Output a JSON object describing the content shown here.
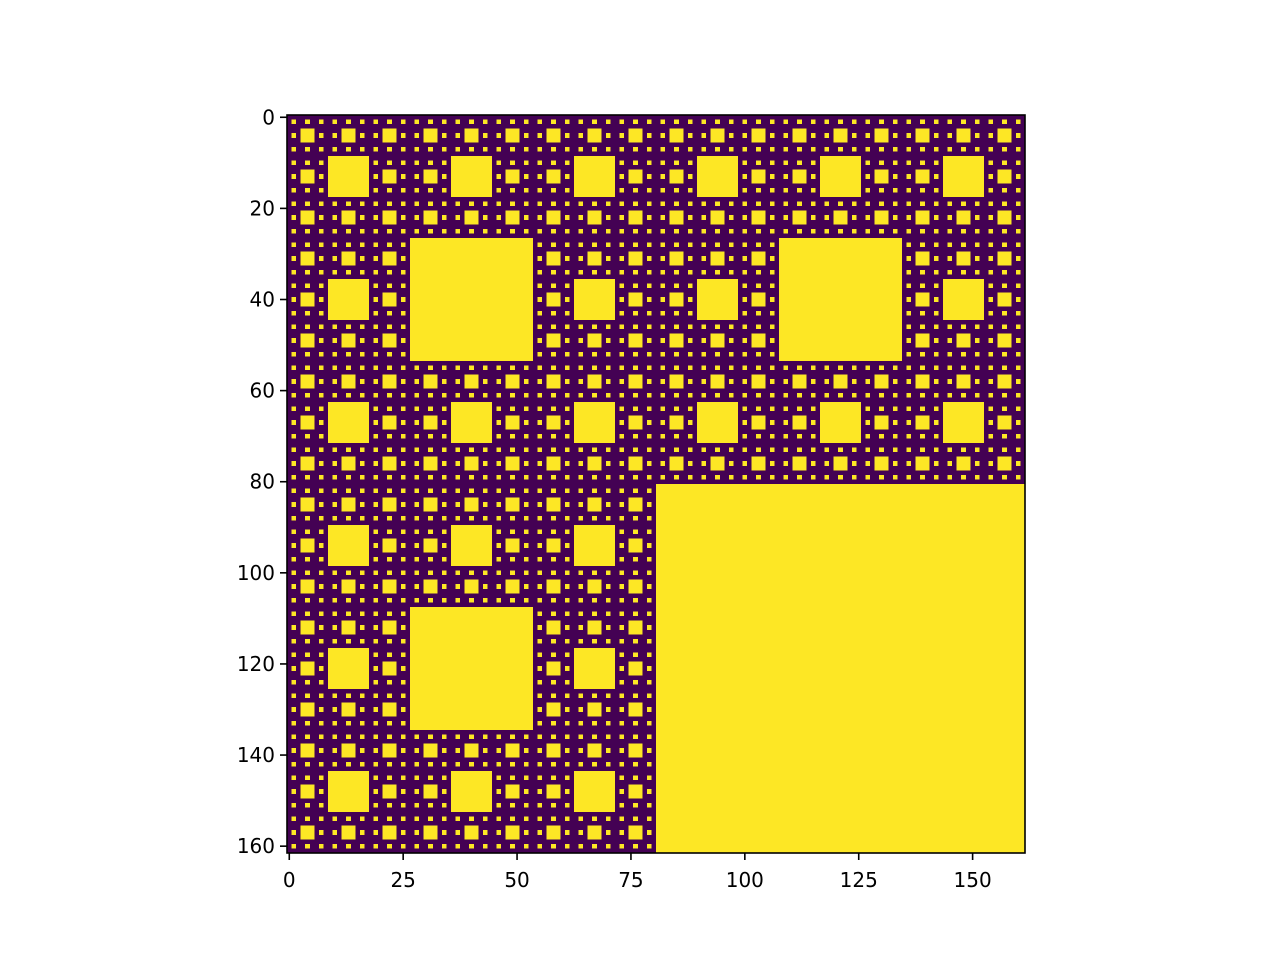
{
  "chart_data": {
    "type": "heatmap",
    "pattern": "sierpinski-carpet",
    "levels": 5,
    "size": [
      162,
      162
    ],
    "colormap": "viridis",
    "value_range": [
      0,
      1
    ],
    "colors": {
      "low": "#440154",
      "high": "#fde725"
    },
    "x_ticks": [
      0,
      25,
      50,
      75,
      100,
      125,
      150
    ],
    "x_tick_labels": [
      "0",
      "25",
      "50",
      "75",
      "100",
      "125",
      "150"
    ],
    "y_ticks": [
      0,
      20,
      40,
      60,
      80,
      100,
      120,
      140,
      160
    ],
    "y_tick_labels": [
      "0",
      "20",
      "40",
      "60",
      "80",
      "100",
      "120",
      "140",
      "160"
    ],
    "xlim": [
      -0.5,
      161.5
    ],
    "ylim": [
      161.5,
      -0.5
    ],
    "grid": false,
    "legend": "none",
    "colorbar": false
  }
}
